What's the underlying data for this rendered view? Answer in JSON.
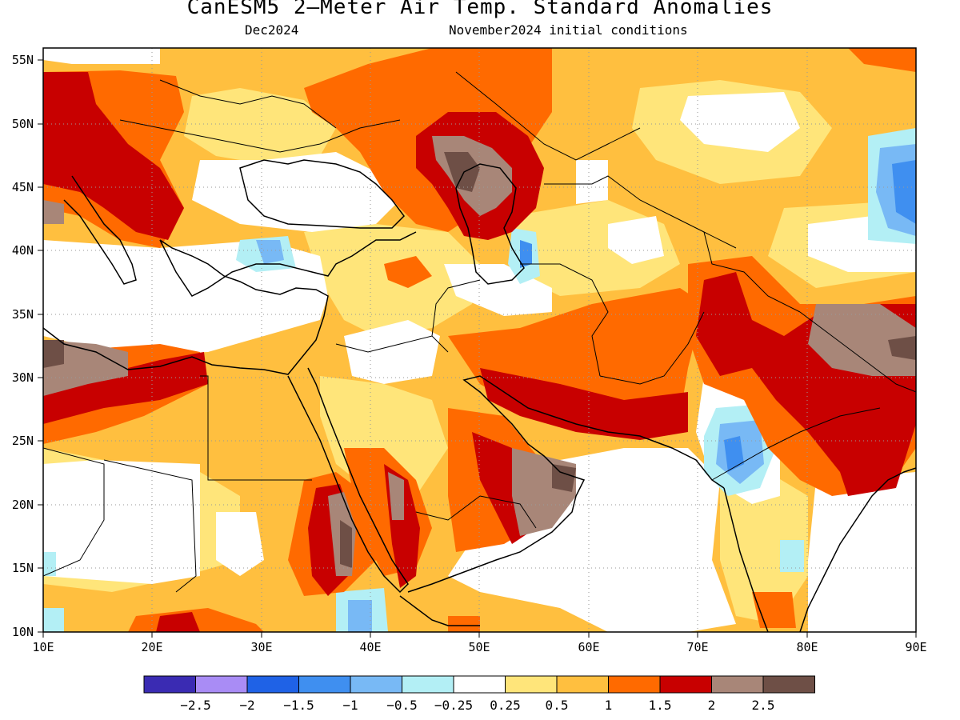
{
  "title": "CanESM5 2—Meter Air Temp. Standard Anomalies",
  "subtitle_left": "Dec2024",
  "subtitle_right": "November2024 initial conditions",
  "axes": {
    "lon_labels": [
      "10E",
      "20E",
      "30E",
      "40E",
      "50E",
      "60E",
      "70E",
      "80E",
      "90E"
    ],
    "lat_labels": [
      "55N",
      "50N",
      "45N",
      "40N",
      "35N",
      "30N",
      "25N",
      "20N",
      "15N",
      "10N"
    ],
    "lon_range": [
      10,
      90
    ],
    "lat_range": [
      10,
      56
    ]
  },
  "colorbar": {
    "colors": [
      "#3a2bb3",
      "#a98cf5",
      "#1f62e6",
      "#3f8ff0",
      "#78b9f5",
      "#b3eff5",
      "#ffffff",
      "#ffe57a",
      "#ffbf3f",
      "#ff6a00",
      "#c80000",
      "#a88678",
      "#6e4f46"
    ],
    "labels": [
      "−2.5",
      "−2",
      "−1.5",
      "−1",
      "−0.5",
      "−0.25",
      "0.25",
      "0.5",
      "1",
      "1.5",
      "2",
      "2.5"
    ]
  }
}
